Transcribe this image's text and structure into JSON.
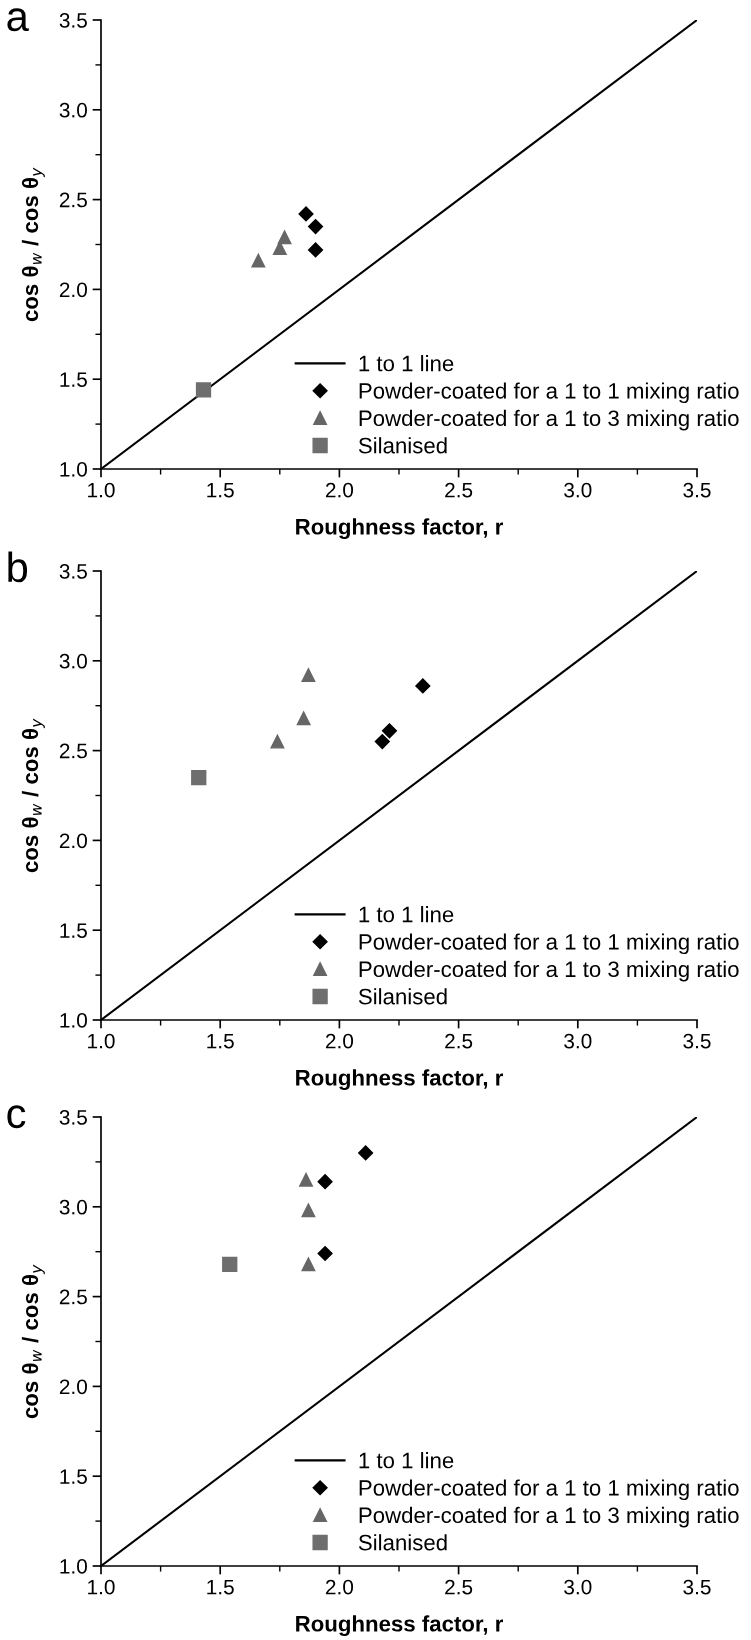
{
  "chart_data": [
    {
      "type": "scatter",
      "title": "a",
      "xlabel": "Roughness factor, r",
      "ylabel": "cos θ$_{w}$ / cos θ$_{y}$",
      "xlim": [
        1.0,
        3.5
      ],
      "ylim": [
        1.0,
        3.5
      ],
      "xticks": [
        {
          "value": 1.0,
          "label": "1.0"
        },
        {
          "value": 1.5,
          "label": "1.5"
        },
        {
          "value": 2.0,
          "label": "2.0"
        },
        {
          "value": 2.5,
          "label": "2.5"
        },
        {
          "value": 3.0,
          "label": "3.0"
        },
        {
          "value": 3.5,
          "label": "3.5"
        }
      ],
      "yticks": [
        {
          "value": 1.0,
          "label": "1.0"
        },
        {
          "value": 1.5,
          "label": "1.5"
        },
        {
          "value": 2.0,
          "label": "2.0"
        },
        {
          "value": 2.5,
          "label": "2.5"
        },
        {
          "value": 3.0,
          "label": "3.0"
        },
        {
          "value": 3.5,
          "label": "3.5"
        }
      ],
      "legend": "bottom right",
      "grid": false,
      "series": [
        {
          "name": "1 to 1 line",
          "type": "line",
          "color": "#000000",
          "marker": "none",
          "x": [
            1.0,
            3.5
          ],
          "values": [
            1.0,
            3.5
          ]
        },
        {
          "name": "Powder-coated for a 1 to 1 mixing ratio",
          "color": "#000000",
          "marker": "diamond",
          "x": [
            1.86,
            1.9,
            1.9
          ],
          "values": [
            2.42,
            2.35,
            2.22
          ]
        },
        {
          "name": "Powder-coated for a 1 to 3 mixing ratio",
          "color": "#666666",
          "marker": "triangle",
          "x": [
            1.66,
            1.75,
            1.77
          ],
          "values": [
            2.16,
            2.23,
            2.29
          ]
        },
        {
          "name": "Silanised",
          "color": "#6e6e6e",
          "marker": "square",
          "x": [
            1.43
          ],
          "values": [
            1.44
          ]
        }
      ]
    },
    {
      "type": "scatter",
      "title": "b",
      "xlabel": "Roughness factor, r",
      "ylabel": "cos θ$_{w}$ / cos θ$_{y}$",
      "xlim": [
        1.0,
        3.5
      ],
      "ylim": [
        1.0,
        3.5
      ],
      "xticks": [
        {
          "value": 1.0,
          "label": "1.0"
        },
        {
          "value": 1.5,
          "label": "1.5"
        },
        {
          "value": 2.0,
          "label": "2.0"
        },
        {
          "value": 2.5,
          "label": "2.5"
        },
        {
          "value": 3.0,
          "label": "3.0"
        },
        {
          "value": 3.5,
          "label": "3.5"
        }
      ],
      "yticks": [
        {
          "value": 1.0,
          "label": "1.0"
        },
        {
          "value": 1.5,
          "label": "1.5"
        },
        {
          "value": 2.0,
          "label": "2.0"
        },
        {
          "value": 2.5,
          "label": "2.5"
        },
        {
          "value": 3.0,
          "label": "3.0"
        },
        {
          "value": 3.5,
          "label": "3.5"
        }
      ],
      "legend": "bottom right",
      "grid": false,
      "series": [
        {
          "name": "1 to 1 line",
          "type": "line",
          "color": "#000000",
          "marker": "none",
          "x": [
            1.0,
            3.5
          ],
          "values": [
            1.0,
            3.5
          ]
        },
        {
          "name": "Powder-coated for a 1 to 1 mixing ratio",
          "color": "#000000",
          "marker": "diamond",
          "x": [
            2.18,
            2.21,
            2.35
          ],
          "values": [
            2.55,
            2.61,
            2.86
          ]
        },
        {
          "name": "Powder-coated for a 1 to 3 mixing ratio",
          "color": "#666666",
          "marker": "triangle",
          "x": [
            1.74,
            1.85,
            1.87
          ],
          "values": [
            2.55,
            2.68,
            2.92
          ]
        },
        {
          "name": "Silanised",
          "color": "#6e6e6e",
          "marker": "square",
          "x": [
            1.41
          ],
          "values": [
            2.35
          ]
        }
      ]
    },
    {
      "type": "scatter",
      "title": "c",
      "xlabel": "Roughness factor, r",
      "ylabel": "cos θ$_{w}$ / cos θ$_{y}$",
      "xlim": [
        1.0,
        3.5
      ],
      "ylim": [
        1.0,
        3.5
      ],
      "xticks": [
        {
          "value": 1.0,
          "label": "1.0"
        },
        {
          "value": 1.5,
          "label": "1.5"
        },
        {
          "value": 2.0,
          "label": "2.0"
        },
        {
          "value": 2.5,
          "label": "2.5"
        },
        {
          "value": 3.0,
          "label": "3.0"
        },
        {
          "value": 3.5,
          "label": "3.5"
        }
      ],
      "yticks": [
        {
          "value": 1.0,
          "label": "1.0"
        },
        {
          "value": 1.5,
          "label": "1.5"
        },
        {
          "value": 2.0,
          "label": "2.0"
        },
        {
          "value": 2.5,
          "label": "2.5"
        },
        {
          "value": 3.0,
          "label": "3.0"
        },
        {
          "value": 3.5,
          "label": "3.5"
        }
      ],
      "legend": "bottom right",
      "grid": false,
      "series": [
        {
          "name": "1 to 1 line",
          "type": "line",
          "color": "#000000",
          "marker": "none",
          "x": [
            1.0,
            3.5
          ],
          "values": [
            1.0,
            3.5
          ]
        },
        {
          "name": "Powder-coated for a 1 to 1 mixing ratio",
          "color": "#000000",
          "marker": "diamond",
          "x": [
            1.94,
            1.94,
            2.11
          ],
          "values": [
            2.74,
            3.14,
            3.3
          ]
        },
        {
          "name": "Powder-coated for a 1 to 3 mixing ratio",
          "color": "#666666",
          "marker": "triangle",
          "x": [
            1.87,
            1.87,
            1.86
          ],
          "values": [
            2.68,
            2.98,
            3.15
          ]
        },
        {
          "name": "Silanised",
          "color": "#6e6e6e",
          "marker": "square",
          "x": [
            1.54
          ],
          "values": [
            2.68
          ]
        }
      ]
    }
  ]
}
